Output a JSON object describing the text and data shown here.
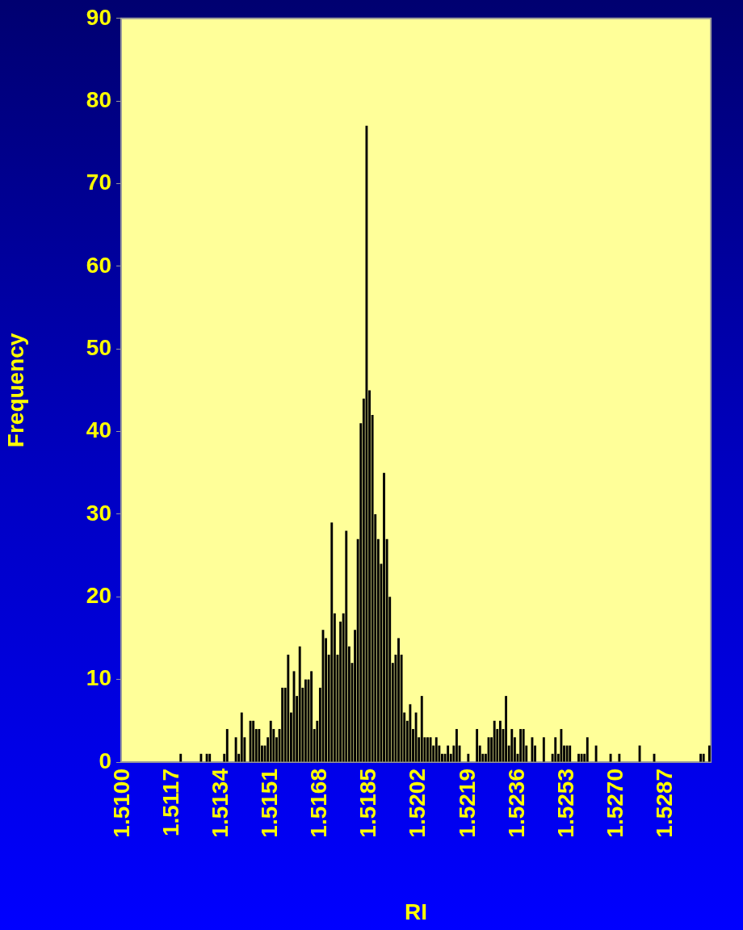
{
  "chart_data": {
    "type": "bar",
    "xlabel": "RI",
    "ylabel": "Frequency",
    "categories": [
      "1.5100",
      null,
      null,
      null,
      null,
      null,
      null,
      null,
      null,
      null,
      null,
      null,
      null,
      null,
      null,
      null,
      null,
      "1.5117",
      null,
      null,
      null,
      null,
      null,
      null,
      null,
      null,
      null,
      null,
      null,
      null,
      null,
      null,
      null,
      null,
      "1.5134",
      null,
      null,
      null,
      null,
      null,
      null,
      null,
      null,
      null,
      null,
      null,
      null,
      null,
      null,
      null,
      null,
      "1.5151",
      null,
      null,
      null,
      null,
      null,
      null,
      null,
      null,
      null,
      null,
      null,
      null,
      null,
      null,
      null,
      null,
      "1.5168",
      null,
      null,
      null,
      null,
      null,
      null,
      null,
      null,
      null,
      null,
      null,
      null,
      null,
      null,
      null,
      null,
      "1.5185",
      null,
      null,
      null,
      null,
      null,
      null,
      null,
      null,
      null,
      null,
      null,
      null,
      null,
      null,
      null,
      null,
      "1.5202",
      null,
      null,
      null,
      null,
      null,
      null,
      null,
      null,
      null,
      null,
      null,
      null,
      null,
      null,
      null,
      null,
      "1.5219",
      null,
      null,
      null,
      null,
      null,
      null,
      null,
      null,
      null,
      null,
      null,
      null,
      null,
      null,
      null,
      null,
      "1.5236",
      null,
      null,
      null,
      null,
      null,
      null,
      null,
      null,
      null,
      null,
      null,
      null,
      null,
      null,
      null,
      null,
      "1.5253",
      null,
      null,
      null,
      null,
      null,
      null,
      null,
      null,
      null,
      null,
      null,
      null,
      null,
      null,
      null,
      null,
      "1.5270",
      null,
      null,
      null,
      null,
      null,
      null,
      null,
      null,
      null,
      null,
      null,
      null,
      null,
      null,
      null,
      null,
      "1.5287",
      null,
      null,
      null,
      null,
      null,
      null,
      null,
      null,
      null,
      null,
      null,
      null,
      null,
      null,
      null
    ],
    "values": [
      0,
      0,
      0,
      0,
      0,
      0,
      0,
      0,
      0,
      0,
      0,
      0,
      0,
      0,
      0,
      0,
      0,
      0,
      0,
      0,
      1,
      0,
      0,
      0,
      0,
      0,
      0,
      1,
      0,
      1,
      1,
      0,
      0,
      0,
      0,
      1,
      4,
      0,
      0,
      3,
      1,
      6,
      3,
      0,
      5,
      5,
      4,
      4,
      2,
      2,
      3,
      5,
      4,
      3,
      4,
      9,
      9,
      13,
      6,
      11,
      8,
      14,
      9,
      10,
      10,
      11,
      4,
      5,
      9,
      16,
      15,
      13,
      29,
      18,
      13,
      17,
      18,
      28,
      14,
      12,
      16,
      27,
      41,
      44,
      77,
      45,
      42,
      30,
      27,
      24,
      35,
      27,
      20,
      12,
      13,
      15,
      13,
      6,
      5,
      7,
      4,
      6,
      3,
      8,
      3,
      3,
      3,
      2,
      3,
      2,
      1,
      1,
      2,
      1,
      2,
      4,
      2,
      0,
      0,
      1,
      0,
      0,
      4,
      2,
      1,
      1,
      3,
      3,
      5,
      4,
      5,
      4,
      8,
      2,
      4,
      3,
      1,
      4,
      4,
      2,
      0,
      3,
      2,
      0,
      0,
      3,
      0,
      0,
      1,
      3,
      1,
      4,
      2,
      2,
      2,
      0,
      0,
      1,
      1,
      1,
      3,
      0,
      0,
      2,
      0,
      0,
      0,
      0,
      1,
      0,
      0,
      1,
      0,
      0,
      0,
      0,
      0,
      0,
      2,
      0,
      0,
      0,
      0,
      1,
      0,
      0,
      0,
      0,
      0,
      0,
      0,
      0,
      0,
      0,
      0,
      0,
      0,
      0,
      0,
      1,
      1,
      0,
      2
    ],
    "color": "#000000",
    "ylim": [
      0,
      90
    ],
    "yticks": [
      0,
      10,
      20,
      30,
      40,
      50,
      60,
      70,
      80,
      90
    ]
  }
}
